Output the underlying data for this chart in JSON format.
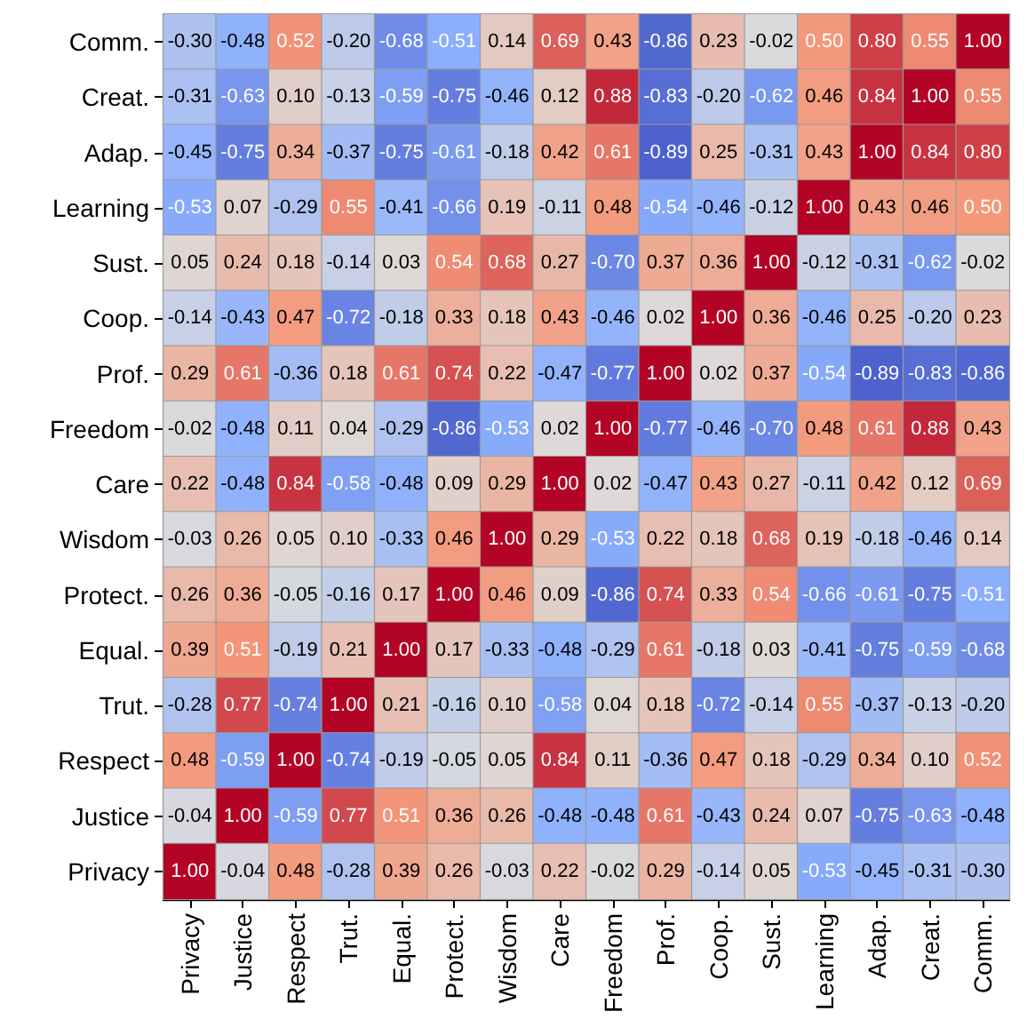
{
  "chart_data": {
    "type": "heatmap",
    "categories": [
      "Privacy",
      "Justice",
      "Respect",
      "Trut.",
      "Equal.",
      "Protect.",
      "Wisdom",
      "Care",
      "Freedom",
      "Prof.",
      "Coop.",
      "Sust.",
      "Learning",
      "Adap.",
      "Creat.",
      "Comm."
    ],
    "y_categories": [
      "Comm.",
      "Creat.",
      "Adap.",
      "Learning",
      "Sust.",
      "Coop.",
      "Prof.",
      "Freedom",
      "Care",
      "Wisdom",
      "Protect.",
      "Equal.",
      "Trut.",
      "Respect",
      "Justice",
      "Privacy"
    ],
    "cells": [
      [
        -0.3,
        -0.48,
        0.52,
        -0.2,
        -0.68,
        -0.51,
        0.14,
        0.69,
        0.43,
        -0.86,
        0.23,
        -0.02,
        0.5,
        0.8,
        0.55,
        1.0
      ],
      [
        -0.31,
        -0.63,
        0.1,
        -0.13,
        -0.59,
        -0.75,
        -0.46,
        0.12,
        0.88,
        -0.83,
        -0.2,
        -0.62,
        0.46,
        0.84,
        1.0,
        0.55
      ],
      [
        -0.45,
        -0.75,
        0.34,
        -0.37,
        -0.75,
        -0.61,
        -0.18,
        0.42,
        0.61,
        -0.89,
        0.25,
        -0.31,
        0.43,
        1.0,
        0.84,
        0.8
      ],
      [
        -0.53,
        0.07,
        -0.29,
        0.55,
        -0.41,
        -0.66,
        0.19,
        -0.11,
        0.48,
        -0.54,
        -0.46,
        -0.12,
        1.0,
        0.43,
        0.46,
        0.5
      ],
      [
        0.05,
        0.24,
        0.18,
        -0.14,
        0.03,
        0.54,
        0.68,
        0.27,
        -0.7,
        0.37,
        0.36,
        1.0,
        -0.12,
        -0.31,
        -0.62,
        -0.02
      ],
      [
        -0.14,
        -0.43,
        0.47,
        -0.72,
        -0.18,
        0.33,
        0.18,
        0.43,
        -0.46,
        0.02,
        1.0,
        0.36,
        -0.46,
        0.25,
        -0.2,
        0.23
      ],
      [
        0.29,
        0.61,
        -0.36,
        0.18,
        0.61,
        0.74,
        0.22,
        -0.47,
        -0.77,
        1.0,
        0.02,
        0.37,
        -0.54,
        -0.89,
        -0.83,
        -0.86
      ],
      [
        -0.02,
        -0.48,
        0.11,
        0.04,
        -0.29,
        -0.86,
        -0.53,
        0.02,
        1.0,
        -0.77,
        -0.46,
        -0.7,
        0.48,
        0.61,
        0.88,
        0.43
      ],
      [
        0.22,
        -0.48,
        0.84,
        -0.58,
        -0.48,
        0.09,
        0.29,
        1.0,
        0.02,
        -0.47,
        0.43,
        0.27,
        -0.11,
        0.42,
        0.12,
        0.69
      ],
      [
        -0.03,
        0.26,
        0.05,
        0.1,
        -0.33,
        0.46,
        1.0,
        0.29,
        -0.53,
        0.22,
        0.18,
        0.68,
        0.19,
        -0.18,
        -0.46,
        0.14
      ],
      [
        0.26,
        0.36,
        -0.05,
        -0.16,
        0.17,
        1.0,
        0.46,
        0.09,
        -0.86,
        0.74,
        0.33,
        0.54,
        -0.66,
        -0.61,
        -0.75,
        -0.51
      ],
      [
        0.39,
        0.51,
        -0.19,
        0.21,
        1.0,
        0.17,
        -0.33,
        -0.48,
        -0.29,
        0.61,
        -0.18,
        0.03,
        -0.41,
        -0.75,
        -0.59,
        -0.68
      ],
      [
        -0.28,
        0.77,
        -0.74,
        1.0,
        0.21,
        -0.16,
        0.1,
        -0.58,
        0.04,
        0.18,
        -0.72,
        -0.14,
        0.55,
        -0.37,
        -0.13,
        -0.2
      ],
      [
        0.48,
        -0.59,
        1.0,
        -0.74,
        -0.19,
        -0.05,
        0.05,
        0.84,
        0.11,
        -0.36,
        0.47,
        0.18,
        -0.29,
        0.34,
        0.1,
        0.52
      ],
      [
        -0.04,
        1.0,
        -0.59,
        0.77,
        0.51,
        0.36,
        0.26,
        -0.48,
        -0.48,
        0.61,
        -0.43,
        0.24,
        0.07,
        -0.75,
        -0.63,
        -0.48
      ],
      [
        1.0,
        -0.04,
        0.48,
        -0.28,
        0.39,
        0.26,
        -0.03,
        0.22,
        -0.02,
        0.29,
        -0.14,
        0.05,
        -0.53,
        -0.45,
        -0.31,
        -0.3
      ]
    ],
    "cell_labels": [
      [
        "-0.30",
        "-0.48",
        "0.52",
        "-0.20",
        "-0.68",
        "-0.51",
        "0.14",
        "0.69",
        "0.43",
        "-0.86",
        "0.23",
        "-0.02",
        "0.50",
        "0.80",
        "0.55",
        "1.00"
      ],
      [
        "-0.31",
        "-0.63",
        "0.10",
        "-0.13",
        "-0.59",
        "-0.75",
        "-0.46",
        "0.12",
        "0.88",
        "-0.83",
        "-0.20",
        "-0.62",
        "0.46",
        "0.84",
        "1.00",
        "0.55"
      ],
      [
        "-0.45",
        "-0.75",
        "0.34",
        "-0.37",
        "-0.75",
        "-0.61",
        "-0.18",
        "0.42",
        "0.61",
        "-0.89",
        "0.25",
        "-0.31",
        "0.43",
        "1.00",
        "0.84",
        "0.80"
      ],
      [
        "-0.53",
        "0.07",
        "-0.29",
        "0.55",
        "-0.41",
        "-0.66",
        "0.19",
        "-0.11",
        "0.48",
        "-0.54",
        "-0.46",
        "-0.12",
        "1.00",
        "0.43",
        "0.46",
        "0.50"
      ],
      [
        "0.05",
        "0.24",
        "0.18",
        "-0.14",
        "0.03",
        "0.54",
        "0.68",
        "0.27",
        "-0.70",
        "0.37",
        "0.36",
        "1.00",
        "-0.12",
        "-0.31",
        "-0.62",
        "-0.02"
      ],
      [
        "-0.14",
        "-0.43",
        "0.47",
        "-0.72",
        "-0.18",
        "0.33",
        "0.18",
        "0.43",
        "-0.46",
        "0.02",
        "1.00",
        "0.36",
        "-0.46",
        "0.25",
        "-0.20",
        "0.23"
      ],
      [
        "0.29",
        "0.61",
        "-0.36",
        "0.18",
        "0.61",
        "0.74",
        "0.22",
        "-0.47",
        "-0.77",
        "1.00",
        "0.02",
        "0.37",
        "-0.54",
        "-0.89",
        "-0.83",
        "-0.86"
      ],
      [
        "-0.02",
        "-0.48",
        "0.11",
        "0.04",
        "-0.29",
        "-0.86",
        "-0.53",
        "0.02",
        "1.00",
        "-0.77",
        "-0.46",
        "-0.70",
        "0.48",
        "0.61",
        "0.88",
        "0.43"
      ],
      [
        "0.22",
        "-0.48",
        "0.84",
        "-0.58",
        "-0.48",
        "0.09",
        "0.29",
        "1.00",
        "0.02",
        "-0.47",
        "0.43",
        "0.27",
        "-0.11",
        "0.42",
        "0.12",
        "0.69"
      ],
      [
        "-0.03",
        "0.26",
        "0.05",
        "0.10",
        "-0.33",
        "0.46",
        "1.00",
        "0.29",
        "-0.53",
        "0.22",
        "0.18",
        "0.68",
        "0.19",
        "-0.18",
        "-0.46",
        "0.14"
      ],
      [
        "0.26",
        "0.36",
        "-0.05",
        "-0.16",
        "0.17",
        "1.00",
        "0.46",
        "0.09",
        "-0.86",
        "0.74",
        "0.33",
        "0.54",
        "-0.66",
        "-0.61",
        "-0.75",
        "-0.51"
      ],
      [
        "0.39",
        "0.51",
        "-0.19",
        "0.21",
        "1.00",
        "0.17",
        "-0.33",
        "-0.48",
        "-0.29",
        "0.61",
        "-0.18",
        "0.03",
        "-0.41",
        "-0.75",
        "-0.59",
        "-0.68"
      ],
      [
        "-0.28",
        "0.77",
        "-0.74",
        "1.00",
        "0.21",
        "-0.16",
        "0.10",
        "-0.58",
        "0.04",
        "0.18",
        "-0.72",
        "-0.14",
        "0.55",
        "-0.37",
        "-0.13",
        "-0.20"
      ],
      [
        "0.48",
        "-0.59",
        "1.00",
        "-0.74",
        "-0.19",
        "-0.05",
        "0.05",
        "0.84",
        "0.11",
        "-0.36",
        "0.47",
        "0.18",
        "-0.29",
        "0.34",
        "0.10",
        "0.52"
      ],
      [
        "-0.04",
        "1.00",
        "-0.59",
        "0.77",
        "0.51",
        "0.36",
        "0.26",
        "-0.48",
        "-0.48",
        "0.61",
        "-0.43",
        "0.24",
        "0.07",
        "-0.75",
        "-0.63",
        "-0.48"
      ],
      [
        "1.00",
        "-0.04",
        "0.48",
        "-0.28",
        "0.39",
        "0.26",
        "-0.03",
        "0.22",
        "-0.02",
        "0.29",
        "-0.14",
        "0.05",
        "-0.53",
        "-0.45",
        "-0.31",
        "-0.30"
      ]
    ],
    "data_labels": true
  }
}
